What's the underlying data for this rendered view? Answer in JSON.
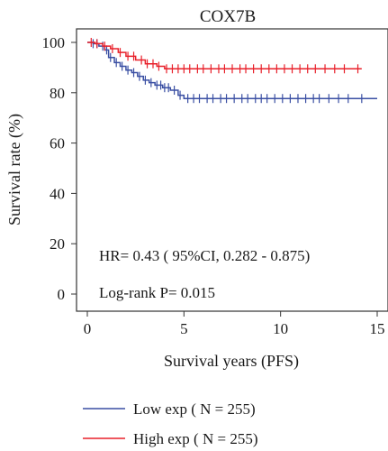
{
  "chart_data": {
    "type": "line",
    "title": "COX7B",
    "xlabel": "Survival years (PFS)",
    "ylabel": "Survival rate (%)",
    "xlim": [
      0,
      15
    ],
    "ylim": [
      0,
      100
    ],
    "x_ticks": [
      0,
      5,
      10,
      15
    ],
    "y_ticks": [
      0,
      20,
      40,
      60,
      80,
      100
    ],
    "annotations": [
      "HR= 0.43 ( 95%CI, 0.282 - 0.875)",
      "Log-rank P= 0.015"
    ],
    "legend_position": "bottom",
    "series": [
      {
        "name": "Low exp ( N = 255)",
        "color": "#3a4fa3",
        "x": [
          0,
          0.3,
          0.6,
          0.9,
          1.1,
          1.4,
          1.7,
          2.0,
          2.3,
          2.6,
          2.9,
          3.2,
          3.5,
          3.9,
          4.3,
          4.7,
          5.0,
          15.0
        ],
        "y": [
          100,
          99.5,
          98.5,
          97,
          94,
          92,
          90.5,
          89,
          88,
          86.5,
          85,
          84,
          83,
          82,
          81,
          79,
          77.7,
          77.7
        ],
        "censor_x": [
          0.3,
          0.5,
          0.8,
          1.0,
          1.2,
          1.5,
          1.8,
          2.1,
          2.4,
          2.7,
          3.0,
          3.3,
          3.6,
          3.8,
          4.0,
          4.2,
          4.5,
          4.8,
          5.2,
          5.5,
          5.8,
          6.2,
          6.5,
          6.9,
          7.2,
          7.6,
          8.0,
          8.3,
          8.7,
          9.0,
          9.3,
          9.7,
          10.1,
          10.5,
          10.9,
          11.3,
          11.7,
          12.0,
          12.5,
          13.0,
          13.5,
          14.2
        ]
      },
      {
        "name": "High exp ( N = 255)",
        "color": "#e8202a",
        "x": [
          0,
          0.4,
          0.8,
          1.2,
          1.6,
          2.0,
          2.5,
          3.0,
          3.6,
          4.0,
          14.2
        ],
        "y": [
          100,
          99.5,
          98.5,
          97.5,
          96,
          94.5,
          93,
          91.5,
          90.5,
          89.5,
          89.5
        ],
        "censor_x": [
          0.2,
          0.5,
          0.9,
          1.3,
          1.7,
          2.1,
          2.4,
          2.8,
          3.1,
          3.4,
          3.7,
          4.1,
          4.4,
          4.7,
          5.0,
          5.3,
          5.7,
          6.0,
          6.4,
          6.8,
          7.1,
          7.5,
          7.9,
          8.2,
          8.6,
          9.0,
          9.4,
          9.8,
          10.2,
          10.6,
          11.0,
          11.4,
          11.8,
          12.3,
          12.8,
          13.3,
          14.0
        ]
      }
    ]
  }
}
